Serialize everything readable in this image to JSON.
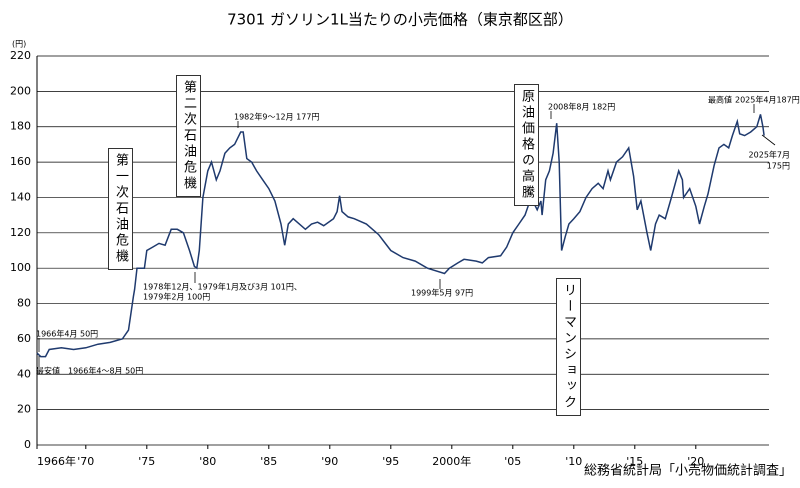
{
  "chart_data": {
    "type": "line",
    "title": "7301 ガソリン1L当たりの小売価格（東京都区部）",
    "y_unit": "(円)",
    "source": "総務省統計局「小売物価統計調査」",
    "x": [
      1966.0,
      1966.3,
      1966.7,
      1967,
      1968,
      1969,
      1970,
      1971,
      1972,
      1973,
      1973.5,
      1973.9,
      1974.0,
      1974.2,
      1974.8,
      1975,
      1975.5,
      1976,
      1976.5,
      1977,
      1977.5,
      1978,
      1978.5,
      1978.9,
      1979.1,
      1979.3,
      1979.6,
      1980,
      1980.3,
      1980.7,
      1981,
      1981.4,
      1981.8,
      1982.2,
      1982.7,
      1982.9,
      1983.2,
      1983.6,
      1984,
      1984.5,
      1985,
      1985.5,
      1986,
      1986.3,
      1986.6,
      1987,
      1988,
      1988.5,
      1989,
      1989.5,
      1990.3,
      1990.6,
      1990.8,
      1991,
      1991.5,
      1992,
      1993,
      1994,
      1995,
      1996,
      1997,
      1998,
      1999.4,
      1999.8,
      2000.5,
      2001,
      2002,
      2002.5,
      2003,
      2004,
      2004.5,
      2005,
      2005.5,
      2006,
      2006.5,
      2007,
      2007.3,
      2007.4,
      2007.7,
      2008,
      2008.3,
      2008.6,
      2008.8,
      2009,
      2009.3,
      2009.6,
      2010,
      2010.5,
      2011,
      2011.5,
      2012,
      2012.4,
      2012.8,
      2013,
      2013.5,
      2014,
      2014.5,
      2014.9,
      2015.2,
      2015.5,
      2016,
      2016.3,
      2016.7,
      2017,
      2017.5,
      2018,
      2018.6,
      2018.9,
      2019,
      2019.5,
      2020,
      2020.3,
      2020.7,
      2021,
      2021.5,
      2021.9,
      2022.3,
      2022.7,
      2023.0,
      2023.4,
      2023.6,
      2024,
      2024.5,
      2025.0,
      2025.3,
      2025.5,
      2025.6
    ],
    "series": [
      {
        "name": "ガソリン",
        "color": "#1f3a6e",
        "values": [
          52,
          50,
          50,
          54,
          55,
          54,
          55,
          57,
          58,
          60,
          65,
          84,
          88,
          100,
          100,
          110,
          112,
          114,
          113,
          122,
          122,
          120,
          110,
          101,
          100,
          110,
          140,
          155,
          160,
          150,
          155,
          165,
          168,
          170,
          177,
          177,
          162,
          160,
          155,
          150,
          145,
          138,
          125,
          113,
          125,
          128,
          122,
          125,
          126,
          124,
          128,
          132,
          141,
          132,
          129,
          128,
          125,
          119,
          110,
          106,
          104,
          100,
          97,
          100,
          103,
          105,
          104,
          103,
          106,
          107,
          112,
          120,
          125,
          130,
          140,
          133,
          138,
          130,
          150,
          155,
          165,
          182,
          160,
          110,
          118,
          125,
          128,
          132,
          140,
          145,
          148,
          145,
          155,
          150,
          160,
          163,
          168,
          152,
          133,
          138,
          120,
          110,
          125,
          130,
          128,
          140,
          155,
          150,
          140,
          145,
          135,
          125,
          135,
          142,
          158,
          168,
          170,
          168,
          175,
          183,
          176,
          175,
          177,
          180,
          187,
          180,
          175
        ]
      }
    ],
    "xlim": [
      1966,
      2026
    ],
    "ylim": [
      0,
      220
    ],
    "yticks": [
      0,
      20,
      40,
      60,
      80,
      100,
      120,
      140,
      160,
      180,
      200,
      220
    ],
    "xticks": [
      {
        "value": 1966,
        "label": "1966年"
      },
      {
        "value": 1970,
        "label": "'70"
      },
      {
        "value": 1975,
        "label": "'75"
      },
      {
        "value": 1980,
        "label": "'80"
      },
      {
        "value": 1985,
        "label": "'85"
      },
      {
        "value": 1990,
        "label": "'90"
      },
      {
        "value": 1995,
        "label": "'95"
      },
      {
        "value": 2000,
        "label": "2000年"
      },
      {
        "value": 2005,
        "label": "'05"
      },
      {
        "value": 2010,
        "label": "'10"
      },
      {
        "value": 2015,
        "label": "'15"
      },
      {
        "value": 2020,
        "label": "'20"
      }
    ],
    "grid": true,
    "boxes": [
      "第一次石油危機",
      "第二次石油危機",
      "原油価格の高騰",
      "リーマンショック"
    ],
    "annotations": [
      "1966年4月 50円",
      "最安値　1966年4～8月 50円",
      "1978年12月、1979年1月及び3月 101円、",
      "1979年2月 100円",
      "1982年9～12月 177円",
      "1999年5月 97円",
      "2008年8月 182円",
      "最高値",
      "2025年4月187円",
      "2025年7月",
      "175円"
    ]
  }
}
